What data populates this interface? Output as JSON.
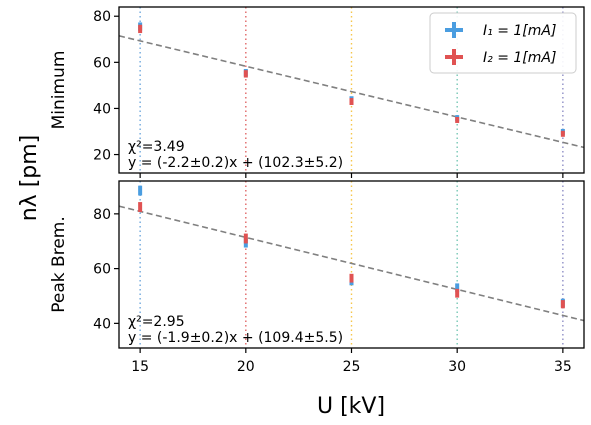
{
  "chart_data": {
    "type": "scatter",
    "shared_xlabel": "U [kV]",
    "shared_ylabel": "nλ [pm]",
    "xlim": [
      14,
      36
    ],
    "xticks": [
      "15",
      "20",
      "25",
      "30",
      "35"
    ],
    "vlines": [
      {
        "x": 15,
        "color": "#6fa8dc"
      },
      {
        "x": 20,
        "color": "#e06666"
      },
      {
        "x": 25,
        "color": "#f6c64a"
      },
      {
        "x": 30,
        "color": "#76c7b5"
      },
      {
        "x": 35,
        "color": "#8e8ec6"
      }
    ],
    "legend": {
      "placement": "top-right",
      "entries": [
        {
          "label": "I₁ = 1[mA]",
          "color": "#4a9de0"
        },
        {
          "label": "I₂ = 1[mA]",
          "color": "#e05252"
        }
      ]
    },
    "panels": [
      {
        "ylabel": "Minimum",
        "ylim": [
          12,
          84
        ],
        "yticks": [
          "20",
          "40",
          "60",
          "80"
        ],
        "fit": {
          "slope": -2.2,
          "intercept": 102.3
        },
        "annotation": {
          "chi": "χ²=3.49",
          "eq": "y = (-2.2±0.2)x + (102.3±5.2)"
        },
        "series": [
          {
            "name": "I₁ = 1[mA]",
            "color": "#4a9de0",
            "x": [
              15,
              20,
              25,
              30,
              35
            ],
            "y": [
              75.5,
              55.5,
              43.8,
              35.8,
              29.8
            ],
            "yerr": [
              1.8,
              1.6,
              1.5,
              1.3,
              1.3
            ]
          },
          {
            "name": "I₂ = 1[mA]",
            "color": "#e05252",
            "x": [
              15,
              20,
              25,
              30,
              35
            ],
            "y": [
              74.5,
              55.0,
              43.0,
              35.0,
              29.0
            ],
            "yerr": [
              1.8,
              1.6,
              1.5,
              1.3,
              1.3
            ]
          }
        ]
      },
      {
        "ylabel": "Peak Brem.",
        "ylim": [
          31,
          92
        ],
        "yticks": [
          "40",
          "60",
          "80"
        ],
        "fit": {
          "slope": -1.9,
          "intercept": 109.4
        },
        "annotation": {
          "chi": "χ²=2.95",
          "eq": "y = (-1.9±0.2)x + (109.4±5.5)"
        },
        "series": [
          {
            "name": "I₁ = 1[mA]",
            "color": "#4a9de0",
            "x": [
              15,
              20,
              25,
              30,
              35
            ],
            "y": [
              88.5,
              69.5,
              55.5,
              53.0,
              47.5
            ],
            "yerr": [
              1.8,
              1.8,
              1.6,
              1.6,
              1.5
            ]
          },
          {
            "name": "I₂ = 1[mA]",
            "color": "#e05252",
            "x": [
              15,
              20,
              25,
              30,
              35
            ],
            "y": [
              82.5,
              71.0,
              56.5,
              51.0,
              47.0
            ],
            "yerr": [
              1.8,
              1.8,
              1.6,
              1.6,
              1.5
            ]
          }
        ]
      }
    ]
  }
}
